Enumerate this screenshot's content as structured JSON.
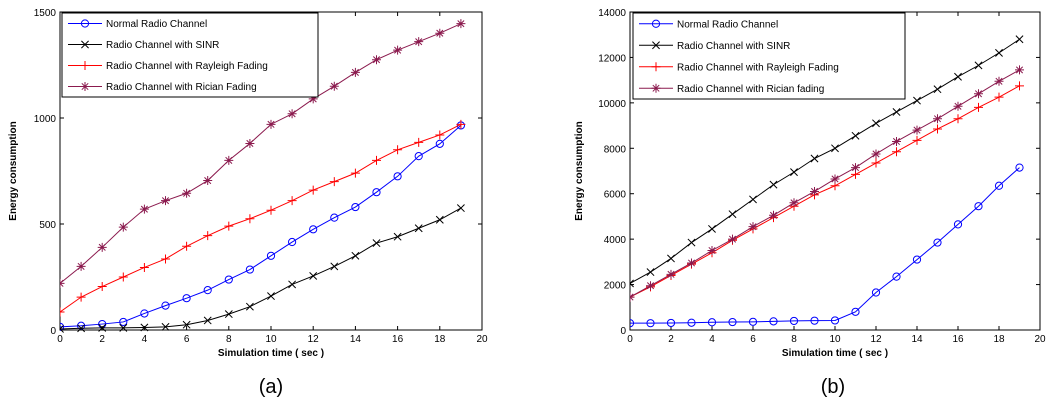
{
  "chart_data": [
    {
      "type": "line",
      "caption": "(a)",
      "xlabel": "Simulation time ( sec )",
      "ylabel": "Energy consumption",
      "xlim": [
        0,
        20
      ],
      "ylim": [
        0,
        1500
      ],
      "xticks": [
        0,
        2,
        4,
        6,
        8,
        10,
        12,
        14,
        16,
        18,
        20
      ],
      "yticks": [
        0,
        500,
        1000,
        1500
      ],
      "grid": false,
      "legend_position": "top-left",
      "x": [
        0,
        1,
        2,
        3,
        4,
        5,
        6,
        7,
        8,
        9,
        10,
        11,
        12,
        13,
        14,
        15,
        16,
        17,
        18,
        19
      ],
      "series": [
        {
          "name": "Normal Radio Channel",
          "color": "#0000ff",
          "marker": "circle",
          "values": [
            15,
            20,
            28,
            38,
            78,
            115,
            150,
            188,
            238,
            285,
            350,
            415,
            475,
            530,
            580,
            650,
            725,
            820,
            878,
            965
          ]
        },
        {
          "name": "Radio Channel with SINR",
          "color": "#000000",
          "marker": "x",
          "values": [
            5,
            8,
            10,
            10,
            12,
            15,
            25,
            45,
            75,
            110,
            160,
            215,
            255,
            300,
            350,
            410,
            440,
            480,
            520,
            575
          ]
        },
        {
          "name": "Radio Channel with Rayleigh Fading",
          "color": "#ff0000",
          "marker": "plus",
          "values": [
            85,
            155,
            205,
            250,
            295,
            335,
            395,
            445,
            490,
            525,
            565,
            610,
            660,
            700,
            740,
            800,
            850,
            885,
            920,
            970
          ]
        },
        {
          "name": "Radio Channel with Rician Fading",
          "color": "#8b1a4e",
          "marker": "star",
          "values": [
            220,
            300,
            390,
            485,
            570,
            610,
            645,
            705,
            800,
            880,
            970,
            1020,
            1090,
            1150,
            1215,
            1275,
            1320,
            1360,
            1400,
            1445
          ]
        }
      ]
    },
    {
      "type": "line",
      "caption": "(b)",
      "xlabel": "Simulation time ( sec )",
      "ylabel": "Energy consumption",
      "xlim": [
        0,
        20
      ],
      "ylim": [
        0,
        14000
      ],
      "xticks": [
        0,
        2,
        4,
        6,
        8,
        10,
        12,
        14,
        16,
        18,
        20
      ],
      "yticks": [
        0,
        2000,
        4000,
        6000,
        8000,
        10000,
        12000,
        14000
      ],
      "grid": false,
      "legend_position": "top-left",
      "x": [
        0,
        1,
        2,
        3,
        4,
        5,
        6,
        7,
        8,
        9,
        10,
        11,
        12,
        13,
        14,
        15,
        16,
        17,
        18,
        19
      ],
      "series": [
        {
          "name": "Normal Radio Channel",
          "color": "#0000ff",
          "marker": "circle",
          "values": [
            300,
            300,
            310,
            320,
            340,
            350,
            360,
            380,
            400,
            410,
            420,
            800,
            1650,
            2350,
            3100,
            3850,
            4650,
            5450,
            6350,
            7150
          ]
        },
        {
          "name": "Radio Channel with SINR",
          "color": "#000000",
          "marker": "x",
          "values": [
            2050,
            2550,
            3150,
            3850,
            4450,
            5100,
            5750,
            6400,
            6950,
            7550,
            8000,
            8550,
            9100,
            9600,
            10100,
            10600,
            11150,
            11650,
            12200,
            12800
          ]
        },
        {
          "name": "Radio Channel with Rayleigh Fading",
          "color": "#ff0000",
          "marker": "plus",
          "values": [
            1450,
            1900,
            2400,
            2900,
            3400,
            3950,
            4450,
            4950,
            5450,
            5950,
            6350,
            6850,
            7350,
            7850,
            8350,
            8850,
            9300,
            9800,
            10250,
            10750
          ]
        },
        {
          "name": "Radio Channel with Rician fading",
          "color": "#8b1a4e",
          "marker": "star",
          "values": [
            1450,
            1950,
            2450,
            2950,
            3500,
            4000,
            4550,
            5050,
            5600,
            6100,
            6650,
            7150,
            7750,
            8300,
            8800,
            9300,
            9850,
            10400,
            10950,
            11450
          ]
        }
      ]
    }
  ]
}
